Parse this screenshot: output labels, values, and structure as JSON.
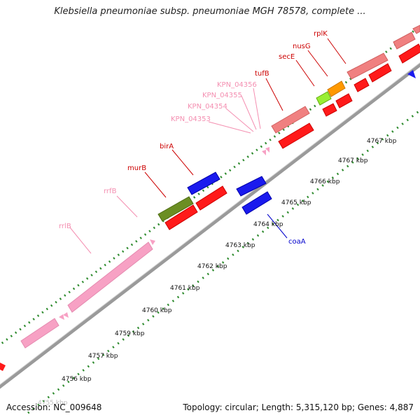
{
  "title": "Klebsiella pneumoniae subsp. pneumoniae MGH 78578, complete ...",
  "accession": "Accession: NC_009648",
  "summary": "Topology: circular; Length: 5,315,120 bp; Genes: 4,887",
  "scale": {
    "unit": "kbp",
    "labels": [
      "4756 kbp",
      "4757 kbp",
      "4759 kbp",
      "4760 kbp",
      "4761 kbp",
      "4762 kbp",
      "4763 kbp",
      "4764 kbp",
      "4765 kbp",
      "4766 kbp",
      "4767 kbp"
    ],
    "partial_label": "4755 kbp"
  },
  "gene_labels": [
    {
      "name": "rrlB",
      "color": "#f48fb1"
    },
    {
      "name": "rrfB",
      "color": "#f48fb1"
    },
    {
      "name": "murB",
      "color": "#cc0000"
    },
    {
      "name": "birA",
      "color": "#cc0000"
    },
    {
      "name": "KPN_04353",
      "color": "#f48fb1"
    },
    {
      "name": "KPN_04354",
      "color": "#f48fb1"
    },
    {
      "name": "KPN_04355",
      "color": "#f48fb1"
    },
    {
      "name": "KPN_04356",
      "color": "#f48fb1"
    },
    {
      "name": "tufB",
      "color": "#cc0000"
    },
    {
      "name": "secE",
      "color": "#cc0000"
    },
    {
      "name": "nusG",
      "color": "#cc0000"
    },
    {
      "name": "rplK",
      "color": "#cc0000"
    },
    {
      "name": "coaA",
      "color": "#0000cc"
    }
  ],
  "colors": {
    "forward_cds": "#ff1a1a",
    "ribosomal": "#f08080",
    "rrna": "#f7a1c4",
    "reverse_cds": "#1a1aee",
    "green_cds": "#6b8e23",
    "lime_cds": "#99ee33",
    "orange_cds": "#ff9900",
    "backbone": "#9e9e9e",
    "tick": "#2e8b2e"
  }
}
